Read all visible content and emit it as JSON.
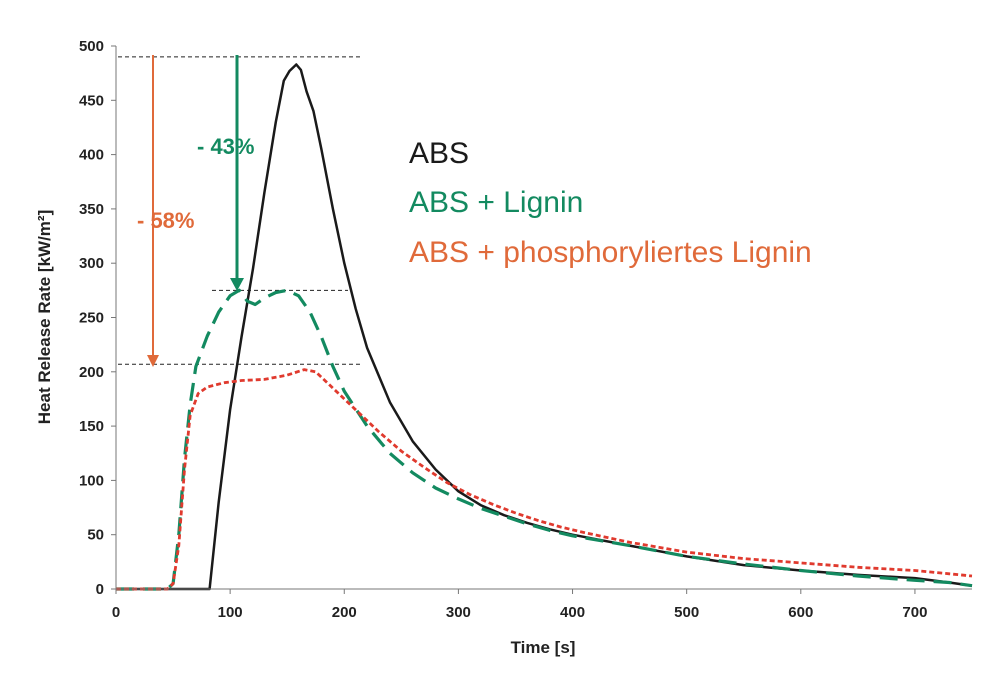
{
  "chart_data": {
    "type": "line",
    "xlabel": "Time [s]",
    "ylabel": "Heat Release Rate [kW/m²]",
    "xlim": [
      0,
      750
    ],
    "ylim": [
      0,
      500
    ],
    "xticks": [
      "0",
      "100",
      "200",
      "300",
      "400",
      "500",
      "600",
      "700"
    ],
    "yticks": [
      "0",
      "50",
      "100",
      "150",
      "200",
      "250",
      "300",
      "350",
      "400",
      "450",
      "500"
    ],
    "grid": false,
    "legend_position": "top-right",
    "series": [
      {
        "name": "ABS",
        "color": "#1a1a1a",
        "style": "solid",
        "points": [
          [
            0,
            0
          ],
          [
            78,
            0
          ],
          [
            82,
            0
          ],
          [
            90,
            80
          ],
          [
            100,
            165
          ],
          [
            110,
            232
          ],
          [
            120,
            295
          ],
          [
            130,
            365
          ],
          [
            140,
            430
          ],
          [
            147,
            468
          ],
          [
            152,
            477
          ],
          [
            158,
            483
          ],
          [
            162,
            478
          ],
          [
            167,
            458
          ],
          [
            173,
            440
          ],
          [
            180,
            405
          ],
          [
            190,
            350
          ],
          [
            200,
            300
          ],
          [
            210,
            258
          ],
          [
            220,
            222
          ],
          [
            240,
            172
          ],
          [
            260,
            136
          ],
          [
            280,
            110
          ],
          [
            300,
            90
          ],
          [
            320,
            77
          ],
          [
            340,
            68
          ],
          [
            360,
            61
          ],
          [
            380,
            55
          ],
          [
            400,
            50
          ],
          [
            450,
            40
          ],
          [
            500,
            30
          ],
          [
            550,
            22
          ],
          [
            600,
            17
          ],
          [
            650,
            13
          ],
          [
            700,
            10
          ],
          [
            730,
            6
          ],
          [
            750,
            3
          ]
        ]
      },
      {
        "name": "ABS + Lignin",
        "color": "#138a60",
        "style": "dashed",
        "points": [
          [
            0,
            0
          ],
          [
            45,
            0
          ],
          [
            50,
            5
          ],
          [
            55,
            50
          ],
          [
            60,
            120
          ],
          [
            65,
            170
          ],
          [
            70,
            205
          ],
          [
            80,
            233
          ],
          [
            90,
            255
          ],
          [
            100,
            270
          ],
          [
            108,
            275
          ],
          [
            115,
            265
          ],
          [
            122,
            262
          ],
          [
            130,
            268
          ],
          [
            140,
            273
          ],
          [
            150,
            275
          ],
          [
            160,
            270
          ],
          [
            170,
            255
          ],
          [
            180,
            232
          ],
          [
            190,
            205
          ],
          [
            200,
            182
          ],
          [
            220,
            150
          ],
          [
            240,
            125
          ],
          [
            260,
            107
          ],
          [
            280,
            93
          ],
          [
            300,
            83
          ],
          [
            320,
            74
          ],
          [
            340,
            67
          ],
          [
            360,
            60
          ],
          [
            380,
            54
          ],
          [
            400,
            49
          ],
          [
            450,
            40
          ],
          [
            500,
            30
          ],
          [
            550,
            23
          ],
          [
            600,
            17
          ],
          [
            650,
            12
          ],
          [
            700,
            8
          ],
          [
            730,
            6
          ],
          [
            750,
            3
          ]
        ]
      },
      {
        "name": "ABS + phosphoryliertes Lignin",
        "color": "#e03a2e",
        "style": "dotted",
        "points": [
          [
            0,
            0
          ],
          [
            45,
            0
          ],
          [
            50,
            5
          ],
          [
            55,
            40
          ],
          [
            60,
            110
          ],
          [
            65,
            160
          ],
          [
            72,
            180
          ],
          [
            80,
            186
          ],
          [
            95,
            190
          ],
          [
            110,
            192
          ],
          [
            130,
            193
          ],
          [
            150,
            197
          ],
          [
            165,
            202
          ],
          [
            175,
            200
          ],
          [
            190,
            185
          ],
          [
            210,
            165
          ],
          [
            230,
            145
          ],
          [
            250,
            127
          ],
          [
            270,
            112
          ],
          [
            290,
            98
          ],
          [
            310,
            87
          ],
          [
            330,
            78
          ],
          [
            350,
            70
          ],
          [
            370,
            63
          ],
          [
            390,
            57
          ],
          [
            410,
            52
          ],
          [
            450,
            43
          ],
          [
            500,
            34
          ],
          [
            550,
            28
          ],
          [
            600,
            24
          ],
          [
            650,
            20
          ],
          [
            700,
            17
          ],
          [
            730,
            14
          ],
          [
            750,
            12
          ]
        ]
      }
    ],
    "annotations": [
      {
        "text": "- 43%",
        "color": "#138a60"
      },
      {
        "text": "- 58%",
        "color": "#e06a3a"
      }
    ],
    "reference_levels": [
      490,
      275,
      207
    ]
  }
}
